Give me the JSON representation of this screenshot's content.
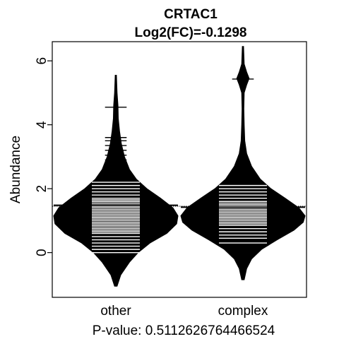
{
  "chart_data": {
    "type": "beanplot",
    "title": "CRTAC1",
    "subtitle": "Log2(FC)=-0.1298",
    "xlabel": "P-value: 0.5112626764466524",
    "ylabel": "Abundance",
    "ylim": [
      -1.4,
      6.6
    ],
    "yticks": [
      0,
      2,
      4,
      6
    ],
    "overall_mean": 1.45,
    "categories": [
      "other",
      "complex"
    ],
    "groups": [
      {
        "name": "other",
        "mean": 1.48,
        "min": -1.05,
        "max": 5.55,
        "density": [
          [
            -1.05,
            0.02
          ],
          [
            -0.7,
            0.08
          ],
          [
            -0.3,
            0.22
          ],
          [
            0.0,
            0.36
          ],
          [
            0.3,
            0.55
          ],
          [
            0.6,
            0.82
          ],
          [
            0.9,
            0.98
          ],
          [
            1.15,
            1.0
          ],
          [
            1.4,
            0.92
          ],
          [
            1.7,
            0.72
          ],
          [
            2.0,
            0.5
          ],
          [
            2.3,
            0.33
          ],
          [
            2.6,
            0.22
          ],
          [
            3.0,
            0.14
          ],
          [
            3.4,
            0.09
          ],
          [
            3.8,
            0.06
          ],
          [
            4.2,
            0.04
          ],
          [
            4.6,
            0.035
          ],
          [
            5.0,
            0.02
          ],
          [
            5.55,
            0.01
          ]
        ],
        "lines": [
          -0.3,
          0.0,
          0.1,
          0.2,
          0.3,
          0.4,
          0.5,
          0.6,
          0.65,
          0.7,
          0.75,
          0.8,
          0.85,
          0.9,
          0.95,
          1.0,
          1.05,
          1.1,
          1.15,
          1.2,
          1.25,
          1.3,
          1.35,
          1.4,
          1.45,
          1.5,
          1.55,
          1.6,
          1.65,
          1.7,
          1.8,
          1.9,
          2.0,
          2.1,
          2.2,
          2.3,
          2.45,
          2.6,
          2.75,
          2.9,
          3.05,
          3.2,
          3.35,
          3.5,
          3.6,
          4.55
        ]
      },
      {
        "name": "complex",
        "mean": 1.42,
        "min": -0.85,
        "max": 6.45,
        "density": [
          [
            -0.85,
            0.02
          ],
          [
            -0.5,
            0.06
          ],
          [
            -0.2,
            0.14
          ],
          [
            0.1,
            0.3
          ],
          [
            0.4,
            0.55
          ],
          [
            0.7,
            0.82
          ],
          [
            0.95,
            0.97
          ],
          [
            1.15,
            1.0
          ],
          [
            1.4,
            0.9
          ],
          [
            1.7,
            0.68
          ],
          [
            2.0,
            0.45
          ],
          [
            2.3,
            0.28
          ],
          [
            2.7,
            0.14
          ],
          [
            3.1,
            0.06
          ],
          [
            3.5,
            0.03
          ],
          [
            4.0,
            0.02
          ],
          [
            4.5,
            0.015
          ],
          [
            5.0,
            0.02
          ],
          [
            5.25,
            0.06
          ],
          [
            5.45,
            0.1
          ],
          [
            5.65,
            0.06
          ],
          [
            5.9,
            0.02
          ],
          [
            6.45,
            0.01
          ]
        ],
        "lines": [
          0.15,
          0.3,
          0.45,
          0.55,
          0.65,
          0.75,
          0.85,
          0.9,
          0.95,
          1.0,
          1.05,
          1.1,
          1.15,
          1.2,
          1.25,
          1.3,
          1.35,
          1.4,
          1.45,
          1.5,
          1.55,
          1.6,
          1.7,
          1.8,
          1.9,
          2.0,
          2.1,
          2.2,
          2.35,
          2.5,
          2.6,
          5.43
        ]
      }
    ],
    "grid": false,
    "legend": "none"
  }
}
